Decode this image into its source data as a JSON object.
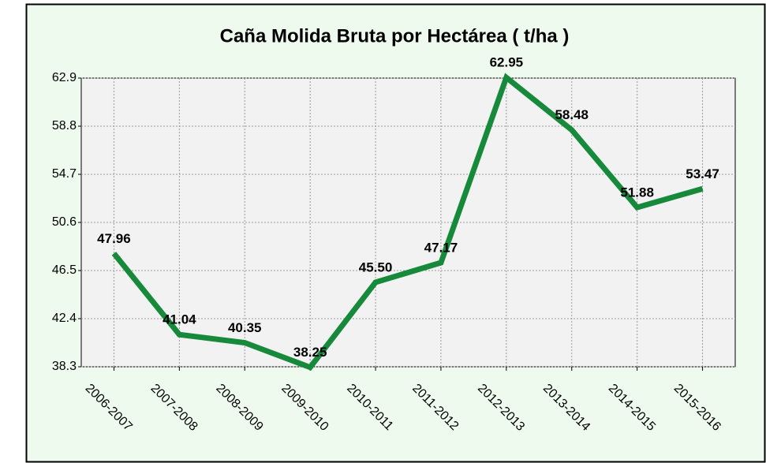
{
  "chart_data": {
    "type": "line",
    "title": "Caña Molida Bruta por Hectárea ( t/ha )",
    "categories": [
      "2006-2007",
      "2007-2008",
      "2008-2009",
      "2009-2010",
      "2010-2011",
      "2011-2012",
      "2012-2013",
      "2013-2014",
      "2014-2015",
      "2015-2016"
    ],
    "series": [
      {
        "name": "Caña Molida Bruta",
        "color": "#168a3a",
        "values": [
          47.96,
          41.04,
          40.35,
          38.25,
          45.5,
          47.17,
          62.95,
          58.48,
          51.88,
          53.47
        ],
        "value_labels": [
          "47.96",
          "41.04",
          "40.35",
          "38.25",
          "45.50",
          "47.17",
          "62.95",
          "58.48",
          "51.88",
          "53.47"
        ]
      }
    ],
    "ylim": [
      38.3,
      62.9
    ],
    "yticks": [
      38.3,
      42.4,
      46.5,
      50.6,
      54.7,
      58.8,
      62.9
    ],
    "grid": true
  }
}
